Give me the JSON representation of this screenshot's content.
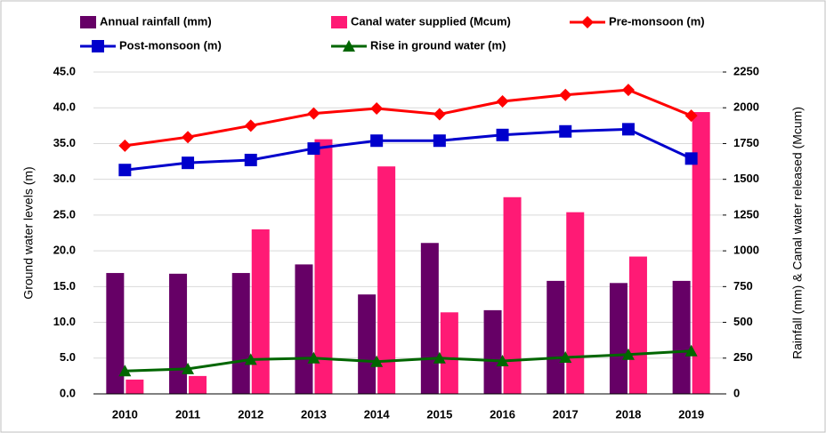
{
  "chart_data": {
    "type": "combo",
    "categories": [
      "2010",
      "2011",
      "2012",
      "2013",
      "2014",
      "2015",
      "2016",
      "2017",
      "2018",
      "2019"
    ],
    "ylabel": "Ground water levels (m)",
    "y2label": "Rainfall (mm) & Canal water released (Mcum)",
    "ylim": [
      0,
      45
    ],
    "yticks": [
      {
        "value": 0,
        "label": "0.0"
      },
      {
        "value": 5,
        "label": "5.0"
      },
      {
        "value": 10,
        "label": "10.0"
      },
      {
        "value": 15,
        "label": "15.0"
      },
      {
        "value": 20,
        "label": "20.0"
      },
      {
        "value": 25,
        "label": "25.0"
      },
      {
        "value": 30,
        "label": "30.0"
      },
      {
        "value": 35,
        "label": "35.0"
      },
      {
        "value": 40,
        "label": "40.0"
      },
      {
        "value": 45,
        "label": "45.0"
      }
    ],
    "y2lim": [
      0,
      2250
    ],
    "y2ticks": [
      0,
      250,
      500,
      750,
      1000,
      1250,
      1500,
      1750,
      2000,
      2250
    ],
    "grid": true,
    "legend": "top",
    "series": [
      {
        "name": "Annual rainfall (mm)",
        "type": "bar",
        "axis": "y2",
        "color": "#660066",
        "values": [
          845,
          840,
          845,
          905,
          695,
          1055,
          585,
          790,
          775,
          790
        ]
      },
      {
        "name": "Canal water supplied (Mcum)",
        "type": "bar",
        "axis": "y2",
        "color": "#ff1a75",
        "values": [
          100,
          125,
          1150,
          1780,
          1590,
          570,
          1375,
          1270,
          960,
          1970
        ]
      },
      {
        "name": "Pre-monsoon (m)",
        "type": "line",
        "marker": "diamond",
        "color": "#ff0000",
        "values": [
          34.7,
          35.9,
          37.5,
          39.2,
          39.9,
          39.1,
          40.9,
          41.8,
          42.5,
          38.9
        ]
      },
      {
        "name": "Post-monsoon (m)",
        "type": "line",
        "marker": "square",
        "color": "#0000cc",
        "values": [
          31.3,
          32.3,
          32.7,
          34.3,
          35.4,
          35.4,
          36.2,
          36.7,
          37.0,
          32.9
        ]
      },
      {
        "name": "Rise in ground water (m)",
        "type": "line",
        "marker": "triangle",
        "color": "#006600",
        "values": [
          3.2,
          3.5,
          4.8,
          5.0,
          4.5,
          5.0,
          4.6,
          5.1,
          5.5,
          6.0
        ]
      }
    ]
  }
}
